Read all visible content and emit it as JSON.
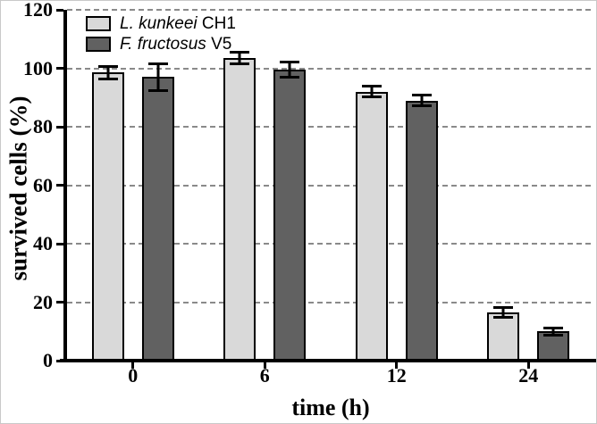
{
  "chart_data": {
    "type": "bar",
    "title": "",
    "xlabel": "time (h)",
    "ylabel": "survived cells (%)",
    "categories": [
      "0",
      "6",
      "12",
      "24"
    ],
    "ylim": [
      0,
      120
    ],
    "yticks": [
      0,
      20,
      40,
      60,
      80,
      100,
      120
    ],
    "grid": "horizontal-dashed",
    "legend_position": "top-left-inside",
    "error_bar_style": "plus-minus-capped",
    "series": [
      {
        "name": "L. kunkeei",
        "strain": "CH1",
        "label": "L. kunkeei CH1",
        "color": "#d9d9d9",
        "values": [
          98.5,
          103.5,
          92,
          16.5
        ],
        "errors": [
          2.5,
          2.5,
          2.3,
          2
        ]
      },
      {
        "name": "F. fructosus",
        "strain": "V5",
        "label": "F. fructosus V5",
        "color": "#616161",
        "values": [
          97,
          99.5,
          89,
          10
        ],
        "errors": [
          5,
          3,
          2.3,
          1.7
        ]
      }
    ],
    "colors": {
      "axis": "#000000",
      "gridline": "#8a8a8a",
      "bar_border": "#000000",
      "error_bar": "#000000",
      "background": "#ffffff"
    }
  }
}
